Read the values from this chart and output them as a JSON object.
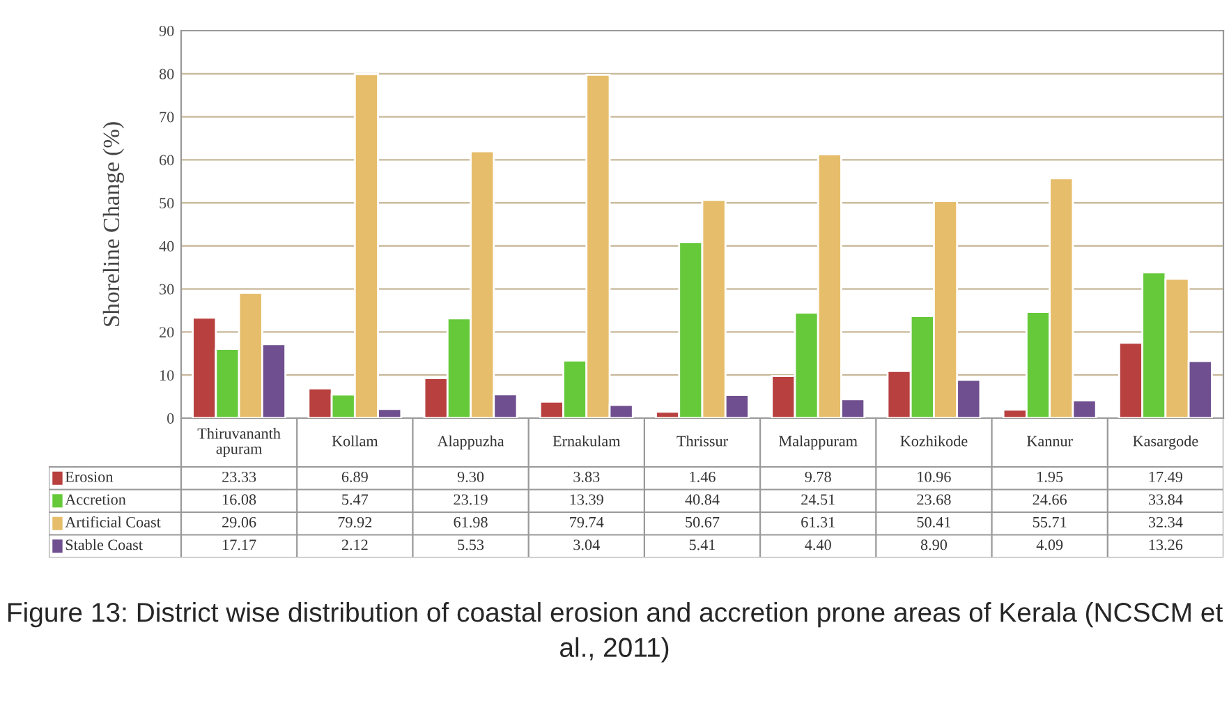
{
  "chart_data": {
    "type": "bar",
    "ylabel": "Shoreline Change (%)",
    "categories": [
      "Thiruvananth\napuram",
      "Kollam",
      "Alappuzha",
      "Ernakulam",
      "Thrissur",
      "Malappuram",
      "Kozhikode",
      "Kannur",
      "Kasargode"
    ],
    "series": [
      {
        "name": "Erosion",
        "color": "#b8403f",
        "values": [
          23.33,
          6.89,
          9.3,
          3.83,
          1.46,
          9.78,
          10.96,
          1.95,
          17.49
        ],
        "value_labels": [
          "23.33",
          "6.89",
          "9.30",
          "3.83",
          "1.46",
          "9.78",
          "10.96",
          "1.95",
          "17.49"
        ]
      },
      {
        "name": "Accretion",
        "color": "#66c93a",
        "values": [
          16.08,
          5.47,
          23.19,
          13.39,
          40.84,
          24.51,
          23.68,
          24.66,
          33.84
        ],
        "value_labels": [
          "16.08",
          "5.47",
          "23.19",
          "13.39",
          "40.84",
          "24.51",
          "23.68",
          "24.66",
          "33.84"
        ]
      },
      {
        "name": "Artificial Coast",
        "color": "#e6bd6a",
        "values": [
          29.06,
          79.92,
          61.98,
          79.74,
          50.67,
          61.31,
          50.41,
          55.71,
          32.34
        ],
        "value_labels": [
          "29.06",
          "79.92",
          "61.98",
          "79.74",
          "50.67",
          "61.31",
          "50.41",
          "55.71",
          "32.34"
        ]
      },
      {
        "name": "Stable Coast",
        "color": "#6f4f8f",
        "values": [
          17.17,
          2.12,
          5.53,
          3.04,
          5.41,
          4.4,
          8.9,
          4.09,
          13.26
        ],
        "value_labels": [
          "17.17",
          "2.12",
          "5.53",
          "3.04",
          "5.41",
          "4.40",
          "8.90",
          "4.09",
          "13.26"
        ]
      }
    ],
    "ylim": [
      0,
      90
    ],
    "yticks": [
      0,
      10,
      20,
      30,
      40,
      50,
      60,
      70,
      80,
      90
    ],
    "grid": "y",
    "legend": "bottom",
    "annotations": [
      "Figure 13: District wise distribution of coastal erosion and accretion prone areas of Kerala (NCSCM et al., 2011)"
    ]
  }
}
